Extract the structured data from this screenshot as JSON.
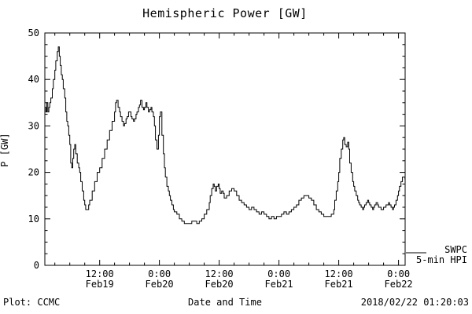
{
  "title": "Hemispheric Power [GW]",
  "ylabel": "P [GW]",
  "xlabel": "Date and Time",
  "footer_left": "Plot: CCMC",
  "footer_right": "2018/02/22 01:20:03",
  "legend": {
    "line1": "SWPC",
    "line2": "5-min HPI"
  },
  "chart_data": {
    "type": "line",
    "title": "Hemispheric Power [GW]",
    "xlabel": "Date and Time",
    "ylabel": "P [GW]",
    "x_unit": "hours since 2018-02-19 00:00 UTC",
    "xlim": [
      1.0,
      73.33
    ],
    "ylim": [
      0,
      50
    ],
    "y_ticks": [
      0,
      10,
      20,
      30,
      40,
      50
    ],
    "x_ticks": [
      {
        "value": 12,
        "label": [
          "12:00",
          "Feb19"
        ]
      },
      {
        "value": 24,
        "label": [
          "0:00",
          "Feb20"
        ]
      },
      {
        "value": 36,
        "label": [
          "12:00",
          "Feb20"
        ]
      },
      {
        "value": 48,
        "label": [
          "0:00",
          "Feb21"
        ]
      },
      {
        "value": 60,
        "label": [
          "12:00",
          "Feb21"
        ]
      },
      {
        "value": 72,
        "label": [
          "0:00",
          "Feb22"
        ]
      }
    ],
    "line_color": "#000000",
    "grid": false,
    "legend_position": "right-outside",
    "series": [
      {
        "name": "SWPC 5-min HPI",
        "points": [
          [
            1.0,
            34
          ],
          [
            1.2,
            33
          ],
          [
            1.4,
            35
          ],
          [
            1.6,
            33
          ],
          [
            1.8,
            34
          ],
          [
            2.0,
            35
          ],
          [
            2.2,
            36
          ],
          [
            2.5,
            38
          ],
          [
            2.7,
            40
          ],
          [
            3.0,
            42
          ],
          [
            3.2,
            44
          ],
          [
            3.5,
            46
          ],
          [
            3.7,
            47
          ],
          [
            3.9,
            45
          ],
          [
            4.1,
            43
          ],
          [
            4.3,
            41
          ],
          [
            4.5,
            40
          ],
          [
            4.7,
            38
          ],
          [
            5.0,
            36
          ],
          [
            5.2,
            33
          ],
          [
            5.4,
            31
          ],
          [
            5.6,
            30
          ],
          [
            5.8,
            28
          ],
          [
            6.0,
            26
          ],
          [
            6.2,
            22
          ],
          [
            6.4,
            21
          ],
          [
            6.6,
            23
          ],
          [
            6.8,
            25
          ],
          [
            7.0,
            26
          ],
          [
            7.2,
            24
          ],
          [
            7.5,
            22
          ],
          [
            7.8,
            21
          ],
          [
            8.0,
            20
          ],
          [
            8.2,
            18
          ],
          [
            8.5,
            16
          ],
          [
            8.8,
            14
          ],
          [
            9.0,
            13
          ],
          [
            9.2,
            12
          ],
          [
            9.5,
            12
          ],
          [
            9.8,
            13
          ],
          [
            10.0,
            14
          ],
          [
            10.5,
            16
          ],
          [
            11.0,
            18
          ],
          [
            11.5,
            20
          ],
          [
            12.0,
            21
          ],
          [
            12.5,
            23
          ],
          [
            13.0,
            25
          ],
          [
            13.5,
            27
          ],
          [
            14.0,
            29
          ],
          [
            14.5,
            31
          ],
          [
            15.0,
            33
          ],
          [
            15.2,
            35
          ],
          [
            15.4,
            35.5
          ],
          [
            15.7,
            34
          ],
          [
            16.0,
            33
          ],
          [
            16.2,
            32
          ],
          [
            16.5,
            31
          ],
          [
            16.8,
            30
          ],
          [
            17.0,
            30.5
          ],
          [
            17.3,
            31.5
          ],
          [
            17.5,
            32
          ],
          [
            17.8,
            33
          ],
          [
            18.0,
            33
          ],
          [
            18.3,
            32
          ],
          [
            18.5,
            31.5
          ],
          [
            18.8,
            31
          ],
          [
            19.0,
            31.5
          ],
          [
            19.3,
            32.5
          ],
          [
            19.5,
            33
          ],
          [
            19.8,
            34
          ],
          [
            20.0,
            34.5
          ],
          [
            20.2,
            35.5
          ],
          [
            20.5,
            34
          ],
          [
            20.8,
            33.5
          ],
          [
            21.0,
            34
          ],
          [
            21.3,
            35
          ],
          [
            21.5,
            34
          ],
          [
            21.8,
            33
          ],
          [
            22.0,
            33.5
          ],
          [
            22.3,
            34
          ],
          [
            22.5,
            33
          ],
          [
            22.8,
            32
          ],
          [
            23.0,
            30
          ],
          [
            23.2,
            27
          ],
          [
            23.5,
            25
          ],
          [
            23.8,
            28
          ],
          [
            24.0,
            32
          ],
          [
            24.2,
            33
          ],
          [
            24.5,
            28
          ],
          [
            24.8,
            24
          ],
          [
            25.0,
            21
          ],
          [
            25.2,
            19
          ],
          [
            25.5,
            17
          ],
          [
            25.8,
            16
          ],
          [
            26.0,
            15
          ],
          [
            26.2,
            14
          ],
          [
            26.5,
            13
          ],
          [
            26.8,
            12
          ],
          [
            27.0,
            11.5
          ],
          [
            27.5,
            11
          ],
          [
            28.0,
            10
          ],
          [
            28.5,
            9.5
          ],
          [
            29.0,
            9
          ],
          [
            29.5,
            9
          ],
          [
            30.0,
            9
          ],
          [
            30.5,
            9.5
          ],
          [
            31.0,
            9.5
          ],
          [
            31.5,
            9
          ],
          [
            32.0,
            9.5
          ],
          [
            32.5,
            10
          ],
          [
            33.0,
            11
          ],
          [
            33.5,
            12
          ],
          [
            34.0,
            13.5
          ],
          [
            34.2,
            15
          ],
          [
            34.5,
            16.5
          ],
          [
            34.8,
            17.5
          ],
          [
            35.0,
            17
          ],
          [
            35.2,
            16
          ],
          [
            35.5,
            17
          ],
          [
            35.8,
            17.5
          ],
          [
            36.0,
            16.5
          ],
          [
            36.2,
            15.5
          ],
          [
            36.5,
            16
          ],
          [
            36.8,
            15.5
          ],
          [
            37.0,
            14.5
          ],
          [
            37.5,
            15
          ],
          [
            38.0,
            16
          ],
          [
            38.5,
            16.5
          ],
          [
            39.0,
            16
          ],
          [
            39.5,
            15
          ],
          [
            40.0,
            14
          ],
          [
            40.5,
            13.5
          ],
          [
            41.0,
            13
          ],
          [
            41.5,
            12.5
          ],
          [
            42.0,
            12
          ],
          [
            42.5,
            12.5
          ],
          [
            43.0,
            12
          ],
          [
            43.5,
            11.5
          ],
          [
            44.0,
            11
          ],
          [
            44.5,
            11.5
          ],
          [
            45.0,
            11
          ],
          [
            45.5,
            10.5
          ],
          [
            46.0,
            10
          ],
          [
            46.5,
            10.5
          ],
          [
            47.0,
            10
          ],
          [
            47.5,
            10.5
          ],
          [
            48.0,
            10.5
          ],
          [
            48.5,
            11
          ],
          [
            49.0,
            11.5
          ],
          [
            49.5,
            11
          ],
          [
            50.0,
            11.5
          ],
          [
            50.5,
            12
          ],
          [
            51.0,
            12.5
          ],
          [
            51.5,
            13
          ],
          [
            52.0,
            14
          ],
          [
            52.5,
            14.5
          ],
          [
            53.0,
            15
          ],
          [
            53.5,
            15
          ],
          [
            54.0,
            14.5
          ],
          [
            54.5,
            14
          ],
          [
            55.0,
            13
          ],
          [
            55.5,
            12
          ],
          [
            56.0,
            11.5
          ],
          [
            56.5,
            11
          ],
          [
            57.0,
            10.5
          ],
          [
            57.5,
            10.5
          ],
          [
            58.0,
            10.5
          ],
          [
            58.5,
            11
          ],
          [
            59.0,
            12
          ],
          [
            59.2,
            14
          ],
          [
            59.5,
            16
          ],
          [
            59.8,
            18
          ],
          [
            60.0,
            20
          ],
          [
            60.2,
            23
          ],
          [
            60.5,
            25
          ],
          [
            60.8,
            27
          ],
          [
            61.0,
            27.5
          ],
          [
            61.2,
            26
          ],
          [
            61.5,
            25.5
          ],
          [
            61.8,
            26.5
          ],
          [
            62.0,
            25
          ],
          [
            62.2,
            22
          ],
          [
            62.5,
            20
          ],
          [
            62.8,
            18
          ],
          [
            63.0,
            17
          ],
          [
            63.2,
            16
          ],
          [
            63.5,
            15
          ],
          [
            63.8,
            14
          ],
          [
            64.0,
            13.5
          ],
          [
            64.2,
            13
          ],
          [
            64.5,
            12.5
          ],
          [
            64.8,
            12
          ],
          [
            65.0,
            12.5
          ],
          [
            65.2,
            13
          ],
          [
            65.5,
            13.5
          ],
          [
            65.8,
            14
          ],
          [
            66.0,
            13.5
          ],
          [
            66.2,
            13
          ],
          [
            66.5,
            12.5
          ],
          [
            66.8,
            12
          ],
          [
            67.0,
            12.5
          ],
          [
            67.2,
            13
          ],
          [
            67.5,
            13.5
          ],
          [
            67.8,
            13
          ],
          [
            68.0,
            12.5
          ],
          [
            68.5,
            12
          ],
          [
            69.0,
            12.5
          ],
          [
            69.5,
            13
          ],
          [
            70.0,
            13.5
          ],
          [
            70.2,
            13
          ],
          [
            70.5,
            12.5
          ],
          [
            70.8,
            12
          ],
          [
            71.0,
            12.5
          ],
          [
            71.2,
            13
          ],
          [
            71.5,
            14
          ],
          [
            71.8,
            15
          ],
          [
            72.0,
            16
          ],
          [
            72.2,
            17
          ],
          [
            72.5,
            18
          ],
          [
            72.8,
            19
          ],
          [
            73.0,
            19
          ],
          [
            73.3,
            18.5
          ]
        ]
      }
    ]
  }
}
